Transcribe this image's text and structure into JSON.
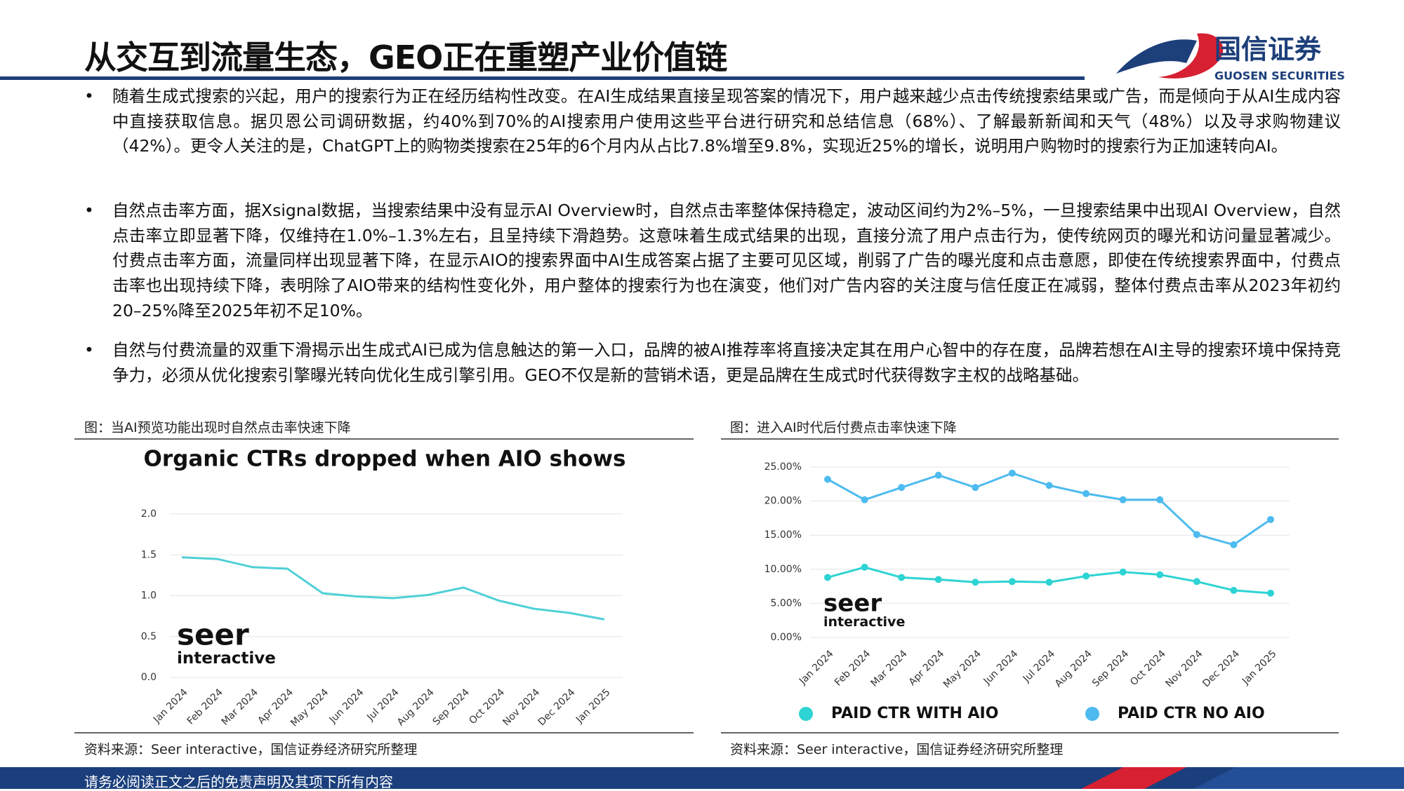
{
  "header": {
    "title": "从交互到流量生态，GEO正在重塑产业价值链",
    "logo_cn": "国信证券",
    "logo_en": "GUOSEN SECURITIES"
  },
  "bullets": [
    "随着生成式搜索的兴起，用户的搜索行为正在经历结构性改变。在AI生成结果直接呈现答案的情况下，用户越来越少点击传统搜索结果或广告，而是倾向于从AI生成内容中直接获取信息。据贝恩公司调研数据，约40%到70%的AI搜索用户使用这些平台进行研究和总结信息（68%）、了解最新新闻和天气（48%）以及寻求购物建议（42%）。更令人关注的是，ChatGPT上的购物类搜索在25年的6个月内从占比7.8%增至9.8%，实现近25%的增长，说明用户购物时的搜索行为正加速转向AI。",
    "自然点击率方面，据Xsignal数据，当搜索结果中没有显示AI Overview时，自然点击率整体保持稳定，波动区间约为2%–5%，一旦搜索结果中出现AI Overview，自然点击率立即显著下降，仅维持在1.0%–1.3%左右，且呈持续下滑趋势。这意味着生成式结果的出现，直接分流了用户点击行为，使传统网页的曝光和访问量显著减少。付费点击率方面，流量同样出现显著下降，在显示AIO的搜索界面中AI生成答案占据了主要可见区域，削弱了广告的曝光度和点击意愿，即使在传统搜索界面中，付费点击率也出现持续下降，表明除了AIO带来的结构性变化外，用户整体的搜索行为也在演变，他们对广告内容的关注度与信任度正在减弱，整体付费点击率从2023年初约20–25%降至2025年初不足10%。",
    "自然与付费流量的双重下滑揭示出生成式AI已成为信息触达的第一入口，品牌的被AI推荐率将直接决定其在用户心智中的存在度，品牌若想在AI主导的搜索环境中保持竞争力，必须从优化搜索引擎曝光转向优化生成引擎引用。GEO不仅是新的营销术语，更是品牌在生成式时代获得数字主权的战略基础。"
  ],
  "figures": [
    {
      "caption": "图：当AI预览功能出现时自然点击率快速下降",
      "source": "资料来源：Seer interactive，国信证券经济研究所整理"
    },
    {
      "caption": "图：进入AI时代后付费点击率快速下降",
      "source": "资料来源：Seer interactive，国信证券经济研究所整理"
    }
  ],
  "footer": "请务必阅读正文之后的免责声明及其项下所有内容",
  "chart_data": [
    {
      "type": "line",
      "title": "Organic CTRs dropped when AIO shows",
      "watermark": "seer",
      "watermark_sub": "interactive",
      "categories": [
        "Jan 2024",
        "Feb 2024",
        "Mar 2024",
        "Apr 2024",
        "May 2024",
        "Jun 2024",
        "Jul 2024",
        "Aug 2024",
        "Sep 2024",
        "Oct 2024",
        "Nov 2024",
        "Dec 2024",
        "Jan 2025"
      ],
      "values": [
        1.47,
        1.45,
        1.35,
        1.33,
        1.03,
        0.99,
        0.97,
        1.01,
        1.1,
        0.94,
        0.84,
        0.79,
        0.71
      ],
      "color": "#4fd0d6",
      "markers": false,
      "ylim": [
        0,
        2
      ],
      "yticks": [
        {
          "value": 0,
          "label": "0.0"
        },
        0.5,
        {
          "value": 1,
          "label": "1.0"
        },
        1.5,
        {
          "value": 2,
          "label": "2.0"
        }
      ],
      "grid": true
    },
    {
      "type": "line",
      "watermark": "seer",
      "watermark_sub": "interactive",
      "categories": [
        "Jan 2024",
        "Feb 2024",
        "Mar 2024",
        "Apr 2024",
        "May 2024",
        "Jun 2024",
        "Jul 2024",
        "Aug 2024",
        "Sep 2024",
        "Oct 2024",
        "Nov 2024",
        "Dec 2024",
        "Jan 2025"
      ],
      "series": [
        {
          "name": "PAID CTR WITH AIO",
          "color": "#2ed3d3",
          "values": [
            8.8,
            10.3,
            8.8,
            8.5,
            8.1,
            8.2,
            8.1,
            9.0,
            9.6,
            9.2,
            8.2,
            6.9,
            6.5
          ]
        },
        {
          "name": "PAID CTR NO AIO",
          "color": "#4dbbef",
          "values": [
            23.2,
            20.2,
            22.0,
            23.8,
            22.0,
            24.1,
            22.3,
            21.1,
            20.2,
            20.2,
            15.1,
            13.6,
            17.3
          ]
        }
      ],
      "markers": true,
      "legend": "bottom",
      "ylim": [
        0,
        25
      ],
      "yticks": [
        {
          "value": 0,
          "label": "0.00%"
        },
        {
          "value": 5,
          "label": "5.00%"
        },
        {
          "value": 10,
          "label": "10.00%"
        },
        {
          "value": 15,
          "label": "15.00%"
        },
        {
          "value": 20,
          "label": "20.00%"
        },
        {
          "value": 25,
          "label": "25.00%"
        }
      ],
      "grid": true
    }
  ]
}
